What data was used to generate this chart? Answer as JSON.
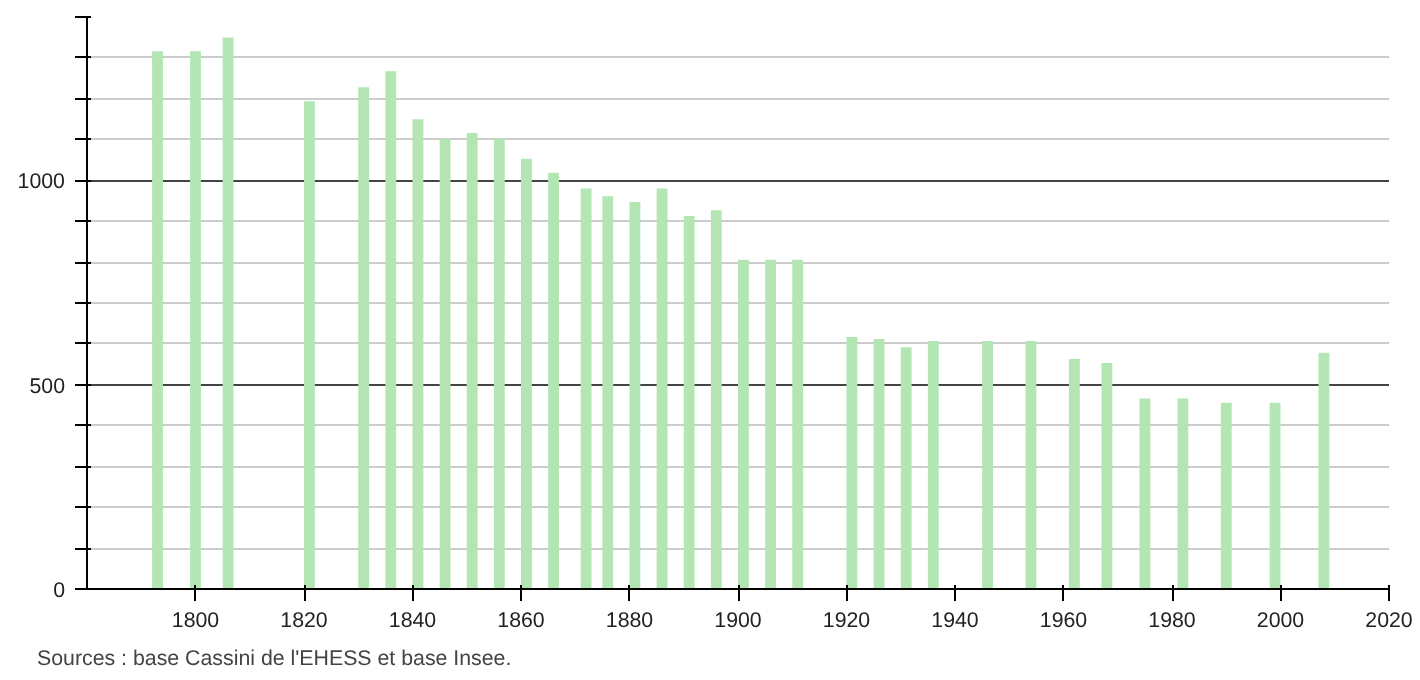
{
  "chart_data": {
    "type": "bar",
    "x": [
      1793,
      1800,
      1806,
      1821,
      1831,
      1836,
      1841,
      1846,
      1851,
      1856,
      1861,
      1866,
      1872,
      1876,
      1881,
      1886,
      1891,
      1896,
      1901,
      1906,
      1911,
      1921,
      1926,
      1931,
      1936,
      1946,
      1954,
      1962,
      1968,
      1975,
      1982,
      1990,
      1999,
      2008
    ],
    "values": [
      1316,
      1316,
      1350,
      1194,
      1228,
      1267,
      1150,
      1102,
      1116,
      1102,
      1053,
      1019,
      980,
      961,
      947,
      980,
      913,
      927,
      806,
      806,
      806,
      617,
      612,
      592,
      607,
      607,
      607,
      563,
      553,
      466,
      466,
      456,
      456,
      578
    ],
    "color": "#b3e6b3",
    "xlim": [
      1780,
      2020
    ],
    "xticks": [
      1800,
      1820,
      1840,
      1860,
      1880,
      1900,
      1920,
      1940,
      1960,
      1980,
      2000,
      2020
    ],
    "ylim": [
      0,
      1400
    ],
    "yticks": [
      0,
      {
        "value": 100,
        "label": null
      },
      {
        "value": 200,
        "label": null
      },
      {
        "value": 300,
        "label": null
      },
      {
        "value": 400,
        "label": null
      },
      500,
      {
        "value": 600,
        "label": null
      },
      {
        "value": 700,
        "label": null
      },
      {
        "value": 800,
        "label": null
      },
      {
        "value": 900,
        "label": null
      },
      1000,
      {
        "value": 1100,
        "label": null
      },
      {
        "value": 1200,
        "label": null
      },
      {
        "value": 1300,
        "label": null
      },
      {
        "value": 1400,
        "label": null
      }
    ],
    "grid": "y",
    "annotations": [
      "Sources : base Cassini de l'EHESS et base Insee."
    ]
  }
}
